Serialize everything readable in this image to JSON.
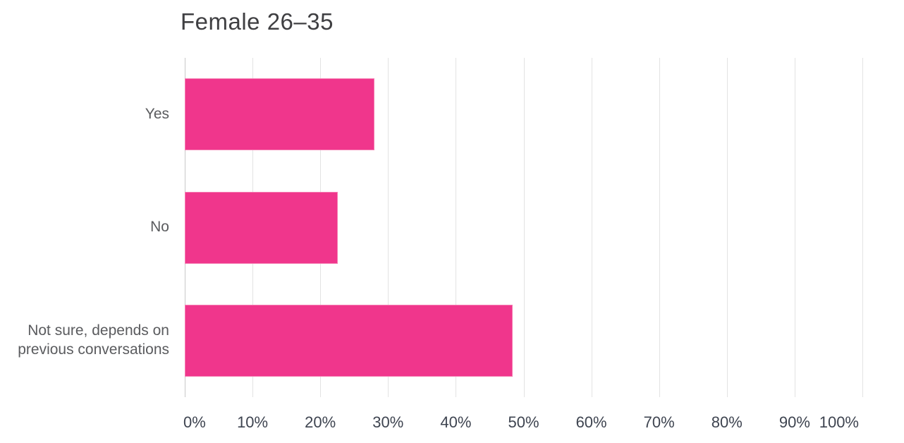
{
  "chart_data": {
    "type": "bar",
    "orientation": "horizontal",
    "title": "Female 26–35",
    "categories": [
      "Yes",
      "No",
      "Not sure, depends on previous conversations"
    ],
    "values": [
      28,
      22.6,
      48.4
    ],
    "value_unit": "%",
    "xlabel": "",
    "ylabel": "",
    "xlim": [
      0,
      100
    ],
    "x_tick_values": [
      0,
      10,
      20,
      30,
      40,
      50,
      60,
      70,
      80,
      90,
      100
    ],
    "x_tick_labels": [
      "0%",
      "10%",
      "20%",
      "30%",
      "40%",
      "50%",
      "60%",
      "70%",
      "80%",
      "90%",
      "100%"
    ],
    "grid": "vertical",
    "legend_position": "none"
  },
  "colors": {
    "background": "#ffffff",
    "bar_fill": "#f0368c",
    "bar_edge": "#f57db2",
    "grid_line": "#e3e3e3",
    "axis_line": "#c8c8c8",
    "title_text": "#3f3f42",
    "category_text": "#5a5b5e",
    "tick_text": "#3e4450"
  }
}
